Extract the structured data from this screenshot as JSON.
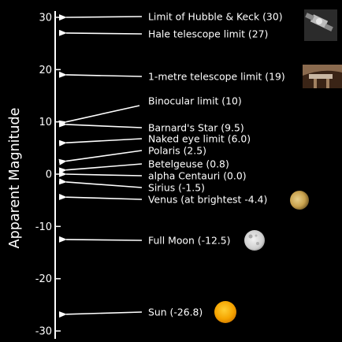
{
  "axis": {
    "title": "Apparent Magnitude",
    "range": [
      -30,
      30
    ],
    "ticks": [
      30,
      20,
      10,
      0,
      -10,
      -20,
      -30
    ]
  },
  "objects": [
    {
      "label": "Limit of Hubble & Keck (30)",
      "magnitude": 30,
      "image": "hubble-telescope"
    },
    {
      "label": "Hale telescope limit (27)",
      "magnitude": 27
    },
    {
      "label": "1-metre telescope limit (19)",
      "magnitude": 19,
      "image": "observatory-telescope"
    },
    {
      "label": "Binocular limit (10)",
      "magnitude": 10
    },
    {
      "label": "Barnard's Star (9.5)",
      "magnitude": 9.5
    },
    {
      "label": "Naked eye limit (6.0)",
      "magnitude": 6.0
    },
    {
      "label": "Polaris (2.5)",
      "magnitude": 2.5
    },
    {
      "label": "Betelgeuse (0.8)",
      "magnitude": 0.8
    },
    {
      "label": "alpha Centauri (0.0)",
      "magnitude": 0.0
    },
    {
      "label": "Sirius (-1.5)",
      "magnitude": -1.5
    },
    {
      "label": "Venus (at brightest -4.4)",
      "magnitude": -4.4,
      "image": "venus"
    },
    {
      "label": "Full Moon (-12.5)",
      "magnitude": -12.5,
      "image": "full-moon"
    },
    {
      "label": "Sun (-26.8)",
      "magnitude": -26.8,
      "image": "sun"
    }
  ],
  "colors": {
    "background": "#000000",
    "foreground": "#ffffff",
    "sun": "#f5a400",
    "venus": "#c9a24e",
    "moon": "#d9d9d9"
  }
}
